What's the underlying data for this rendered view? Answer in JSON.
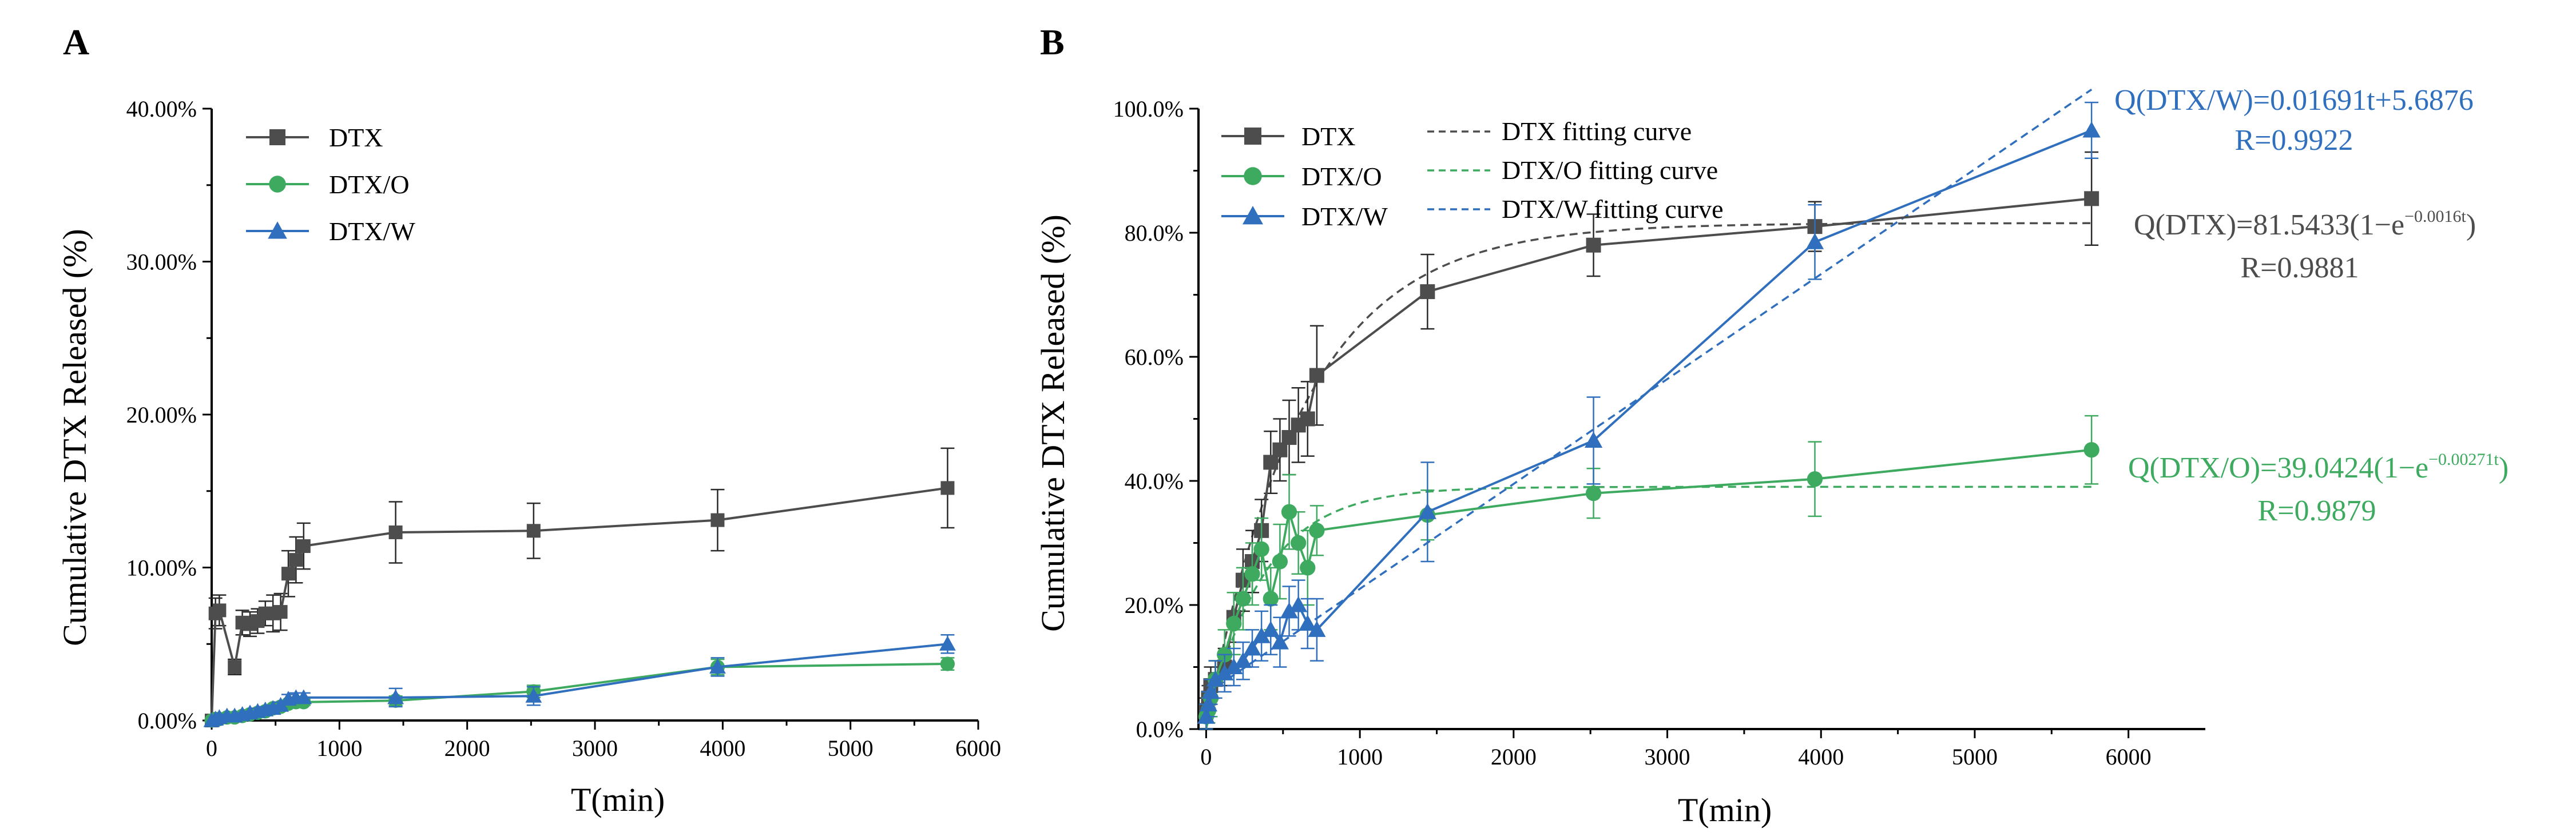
{
  "chart_data": [
    {
      "type": "line",
      "panel": "A",
      "xlabel": "T(min)",
      "ylabel": "Cumulative DTX Released (%)",
      "xlim": [
        0,
        6000
      ],
      "ylim": [
        0,
        40
      ],
      "xticks": [
        0,
        1000,
        2000,
        3000,
        4000,
        5000,
        6000
      ],
      "xtick_labels": [
        "0",
        "1000",
        "2000",
        "3000",
        "4000",
        "5000",
        "6000"
      ],
      "yticks": [
        0,
        10,
        20,
        30,
        40
      ],
      "ytick_labels": [
        "0.00%",
        "10.00%",
        "20.00%",
        "30.00%",
        "40.00%"
      ],
      "legend_position": "top-left",
      "series": [
        {
          "name": "DTX",
          "color": "#4d4d4d",
          "marker": "square",
          "x": [
            0,
            30,
            60,
            180,
            240,
            300,
            360,
            420,
            480,
            540,
            600,
            660,
            720,
            1440,
            2520,
            3960,
            5760
          ],
          "y": [
            0,
            7.0,
            7.2,
            3.5,
            6.4,
            6.3,
            6.5,
            7.0,
            7.0,
            7.1,
            9.6,
            10.5,
            11.4,
            12.3,
            12.4,
            13.1,
            15.2
          ],
          "err": [
            0,
            1.0,
            1.0,
            0.5,
            0.8,
            0.8,
            0.8,
            0.8,
            1.2,
            1.2,
            1.5,
            1.5,
            1.5,
            2.0,
            1.8,
            2.0,
            2.6
          ]
        },
        {
          "name": "DTX/O",
          "color": "#3daa60",
          "marker": "circle",
          "x": [
            0,
            30,
            60,
            120,
            180,
            240,
            300,
            360,
            420,
            480,
            540,
            600,
            660,
            720,
            1440,
            2520,
            3960,
            5760
          ],
          "y": [
            0,
            0.1,
            0.1,
            0.2,
            0.2,
            0.3,
            0.4,
            0.5,
            0.6,
            0.8,
            0.9,
            1.1,
            1.2,
            1.2,
            1.3,
            1.9,
            3.5,
            3.7
          ],
          "err": [
            0,
            0.1,
            0.1,
            0.1,
            0.1,
            0.1,
            0.1,
            0.2,
            0.2,
            0.2,
            0.2,
            0.2,
            0.2,
            0.2,
            0.3,
            0.4,
            0.5,
            0.4
          ]
        },
        {
          "name": "DTX/W",
          "color": "#2f6fbd",
          "marker": "triangle",
          "x": [
            0,
            30,
            60,
            120,
            180,
            240,
            300,
            360,
            420,
            480,
            540,
            600,
            660,
            720,
            1440,
            2520,
            3960,
            5760
          ],
          "y": [
            0,
            0.1,
            0.2,
            0.3,
            0.3,
            0.4,
            0.5,
            0.6,
            0.7,
            0.8,
            1.0,
            1.4,
            1.5,
            1.5,
            1.5,
            1.6,
            3.5,
            5.0
          ],
          "err": [
            0,
            0.1,
            0.1,
            0.1,
            0.1,
            0.1,
            0.1,
            0.2,
            0.2,
            0.2,
            0.2,
            0.3,
            0.3,
            0.3,
            0.6,
            0.6,
            0.6,
            0.6
          ]
        }
      ]
    },
    {
      "type": "line",
      "panel": "B",
      "xlabel": "T(min)",
      "ylabel": "Cumulative DTX Released (%)",
      "xlim": [
        -50,
        6500
      ],
      "ylim": [
        0,
        100
      ],
      "xticks": [
        0,
        1000,
        2000,
        3000,
        4000,
        5000,
        6000
      ],
      "xtick_labels": [
        "0",
        "1000",
        "2000",
        "3000",
        "4000",
        "5000",
        "6000"
      ],
      "yticks": [
        0,
        20,
        40,
        60,
        80,
        100
      ],
      "ytick_labels": [
        "0.0%",
        "20.0%",
        "40.0%",
        "60.0%",
        "80.0%",
        "100.0%"
      ],
      "legend_position": "top-left",
      "series": [
        {
          "name": "DTX",
          "color": "#4d4d4d",
          "marker": "square",
          "x": [
            0,
            15,
            30,
            60,
            120,
            180,
            240,
            300,
            360,
            420,
            480,
            540,
            600,
            660,
            720,
            1440,
            2520,
            3960,
            5760
          ],
          "y": [
            3,
            5,
            7,
            8,
            10,
            18,
            24,
            27,
            32,
            43,
            45,
            47,
            49,
            50,
            57,
            70.5,
            78,
            81,
            85.5
          ],
          "err": [
            2,
            2,
            3,
            3,
            3,
            4,
            5,
            5,
            5,
            5,
            5,
            6,
            6,
            6,
            8,
            6,
            5,
            4,
            7.5
          ]
        },
        {
          "name": "DTX/O",
          "color": "#3daa60",
          "marker": "circle",
          "x": [
            0,
            15,
            30,
            60,
            120,
            180,
            240,
            300,
            360,
            420,
            480,
            540,
            600,
            660,
            720,
            1440,
            2520,
            3960,
            5760
          ],
          "y": [
            2,
            3,
            5,
            8,
            12,
            17,
            21,
            25,
            29,
            21,
            27,
            35,
            30,
            26,
            32,
            34.5,
            38,
            40.3,
            45
          ],
          "err": [
            2,
            2,
            3,
            3,
            4,
            5,
            5,
            5,
            5,
            5,
            6,
            6,
            5,
            6,
            4,
            4,
            4,
            6,
            5.5
          ]
        },
        {
          "name": "DTX/W",
          "color": "#2f6fbd",
          "marker": "triangle",
          "x": [
            0,
            15,
            30,
            60,
            120,
            180,
            240,
            300,
            360,
            420,
            480,
            540,
            600,
            660,
            720,
            1440,
            2520,
            3960,
            5760
          ],
          "y": [
            2,
            4,
            6,
            8,
            9,
            10,
            11,
            13,
            15,
            16,
            14,
            19,
            20,
            17,
            16,
            35,
            46.5,
            78.5,
            96.5
          ],
          "err": [
            2,
            2,
            2,
            3,
            3,
            3,
            3,
            3,
            4,
            4,
            4,
            4,
            4,
            4,
            5,
            8,
            7,
            6,
            4.5
          ]
        },
        {
          "name": "DTX fitting curve",
          "color": "#4d4d4d",
          "style": "dashed",
          "model": "Q(t)=81.5433(1-e^(-0.0016t))",
          "params": {
            "Qmax": 81.5433,
            "k": 0.0016
          }
        },
        {
          "name": "DTX/O fitting curve",
          "color": "#3daa60",
          "style": "dashed",
          "model": "Q(t)=39.0424(1-e^(-0.00271t))",
          "params": {
            "Qmax": 39.0424,
            "k": 0.00271
          }
        },
        {
          "name": "DTX/W fitting curve",
          "color": "#2f6fbd",
          "style": "dashed",
          "model": "Q(t)=0.01691t+5.6876",
          "params": {
            "slope": 0.01691,
            "intercept": 5.6876
          }
        }
      ],
      "annotations": {
        "w_equation": "Q(DTX/W)=0.01691t+5.6876",
        "w_r": "R=0.9922",
        "dtx_equation_prefix": "Q(DTX)=81.5433(1−e",
        "dtx_equation_exp": "−0.0016t",
        "dtx_equation_suffix": ")",
        "dtx_r": "R=0.9881",
        "o_equation_prefix": "Q(DTX/O)=39.0424(1−e",
        "o_equation_exp": "−0.00271t",
        "o_equation_suffix": ")",
        "o_r": "R=0.9879"
      }
    }
  ]
}
